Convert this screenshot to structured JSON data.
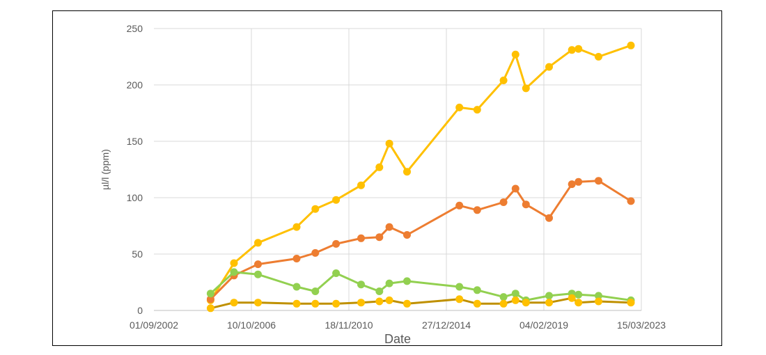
{
  "chart_data": {
    "type": "line",
    "title": "",
    "xlabel": "Date",
    "ylabel": "µl/l (ppm)",
    "x_tick_labels": [
      "01/09/2002",
      "10/10/2006",
      "18/11/2010",
      "27/12/2014",
      "04/02/2019",
      "15/03/2023"
    ],
    "x_ticks": [
      "2002-09-01",
      "2006-10-10",
      "2010-11-18",
      "2014-12-27",
      "2019-02-04",
      "2023-03-15"
    ],
    "xlim": [
      "2002-09-01",
      "2023-03-15"
    ],
    "ylim": [
      0,
      250
    ],
    "y_ticks": [
      0,
      50,
      100,
      150,
      200,
      250
    ],
    "grid": {
      "vertical": true,
      "horizontal": true
    },
    "legend": "none",
    "series": [
      {
        "color": "#FFC000",
        "points": [
          [
            "2005-01-20",
            9
          ],
          [
            "2006-01-15",
            42
          ],
          [
            "2007-01-20",
            60
          ],
          [
            "2008-09-05",
            74
          ],
          [
            "2009-06-20",
            90
          ],
          [
            "2010-05-05",
            98
          ],
          [
            "2011-05-25",
            111
          ],
          [
            "2012-03-01",
            127
          ],
          [
            "2012-08-01",
            148
          ],
          [
            "2013-05-01",
            123
          ],
          [
            "2015-07-15",
            180
          ],
          [
            "2016-04-15",
            178
          ],
          [
            "2017-05-25",
            204
          ],
          [
            "2017-11-25",
            227
          ],
          [
            "2018-05-05",
            197
          ],
          [
            "2019-04-25",
            216
          ],
          [
            "2020-04-10",
            231
          ],
          [
            "2020-07-20",
            232
          ],
          [
            "2021-05-25",
            225
          ],
          [
            "2022-10-05",
            235
          ]
        ]
      },
      {
        "color": "#ED7D31",
        "points": [
          [
            "2005-01-20",
            10
          ],
          [
            "2006-01-15",
            31
          ],
          [
            "2007-01-20",
            41
          ],
          [
            "2008-09-05",
            46
          ],
          [
            "2009-06-20",
            51
          ],
          [
            "2010-05-05",
            59
          ],
          [
            "2011-05-25",
            64
          ],
          [
            "2012-03-01",
            65
          ],
          [
            "2012-08-01",
            74
          ],
          [
            "2013-05-01",
            67
          ],
          [
            "2015-07-15",
            93
          ],
          [
            "2016-04-15",
            89
          ],
          [
            "2017-05-25",
            96
          ],
          [
            "2017-11-25",
            108
          ],
          [
            "2018-05-05",
            94
          ],
          [
            "2019-04-25",
            82
          ],
          [
            "2020-04-10",
            112
          ],
          [
            "2020-07-20",
            114
          ],
          [
            "2021-05-25",
            115
          ],
          [
            "2022-10-05",
            97
          ]
        ]
      },
      {
        "color": "#92D050",
        "points": [
          [
            "2005-01-20",
            15
          ],
          [
            "2006-01-15",
            34
          ],
          [
            "2007-01-20",
            32
          ],
          [
            "2008-09-05",
            21
          ],
          [
            "2009-06-20",
            17
          ],
          [
            "2010-05-05",
            33
          ],
          [
            "2011-05-25",
            23
          ],
          [
            "2012-03-01",
            17
          ],
          [
            "2012-08-01",
            24
          ],
          [
            "2013-05-01",
            26
          ],
          [
            "2015-07-15",
            21
          ],
          [
            "2016-04-15",
            18
          ],
          [
            "2017-05-25",
            12
          ],
          [
            "2017-11-25",
            15
          ],
          [
            "2018-05-05",
            9
          ],
          [
            "2019-04-25",
            13
          ],
          [
            "2020-04-10",
            15
          ],
          [
            "2020-07-20",
            14
          ],
          [
            "2021-05-25",
            13
          ],
          [
            "2022-10-05",
            9
          ]
        ]
      },
      {
        "color": "#BF9000",
        "marker_color": "#FFC000",
        "points": [
          [
            "2005-01-20",
            2
          ],
          [
            "2006-01-15",
            7
          ],
          [
            "2007-01-20",
            7
          ],
          [
            "2008-09-05",
            6
          ],
          [
            "2009-06-20",
            6
          ],
          [
            "2010-05-05",
            6
          ],
          [
            "2011-05-25",
            7
          ],
          [
            "2012-03-01",
            8
          ],
          [
            "2012-08-01",
            9
          ],
          [
            "2013-05-01",
            6
          ],
          [
            "2015-07-15",
            10
          ],
          [
            "2016-04-15",
            6
          ],
          [
            "2017-05-25",
            6
          ],
          [
            "2017-11-25",
            9
          ],
          [
            "2018-05-05",
            7
          ],
          [
            "2019-04-25",
            7
          ],
          [
            "2020-04-10",
            11
          ],
          [
            "2020-07-20",
            7
          ],
          [
            "2021-05-25",
            8
          ],
          [
            "2022-10-05",
            7
          ]
        ]
      }
    ]
  }
}
